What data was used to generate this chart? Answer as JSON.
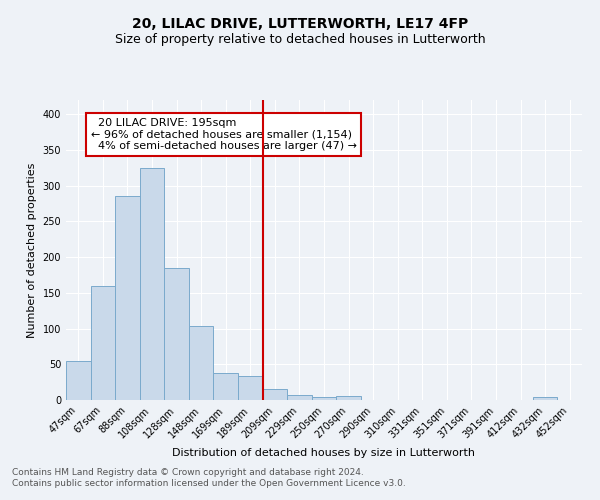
{
  "title": "20, LILAC DRIVE, LUTTERWORTH, LE17 4FP",
  "subtitle": "Size of property relative to detached houses in Lutterworth",
  "xlabel": "Distribution of detached houses by size in Lutterworth",
  "ylabel": "Number of detached properties",
  "bin_labels": [
    "47sqm",
    "67sqm",
    "88sqm",
    "108sqm",
    "128sqm",
    "148sqm",
    "169sqm",
    "189sqm",
    "209sqm",
    "229sqm",
    "250sqm",
    "270sqm",
    "290sqm",
    "310sqm",
    "331sqm",
    "351sqm",
    "371sqm",
    "391sqm",
    "412sqm",
    "432sqm",
    "452sqm"
  ],
  "bar_heights": [
    55,
    160,
    285,
    325,
    185,
    103,
    38,
    33,
    16,
    7,
    4,
    5,
    0,
    0,
    0,
    0,
    0,
    0,
    0,
    4,
    0
  ],
  "bar_color": "#c9d9ea",
  "bar_edge_color": "#7aaacc",
  "vline_x": 7.5,
  "vline_color": "#cc0000",
  "annotation_text": "  20 LILAC DRIVE: 195sqm\n← 96% of detached houses are smaller (1,154)\n  4% of semi-detached houses are larger (47) →",
  "annotation_box_color": "#ffffff",
  "annotation_box_edge": "#cc0000",
  "ylim": [
    0,
    420
  ],
  "yticks": [
    0,
    50,
    100,
    150,
    200,
    250,
    300,
    350,
    400
  ],
  "footer_line1": "Contains HM Land Registry data © Crown copyright and database right 2024.",
  "footer_line2": "Contains public sector information licensed under the Open Government Licence v3.0.",
  "bg_color": "#eef2f7",
  "grid_color": "#ffffff",
  "title_fontsize": 10,
  "subtitle_fontsize": 9,
  "axis_label_fontsize": 8,
  "tick_fontsize": 7,
  "annotation_fontsize": 8,
  "footer_fontsize": 6.5
}
